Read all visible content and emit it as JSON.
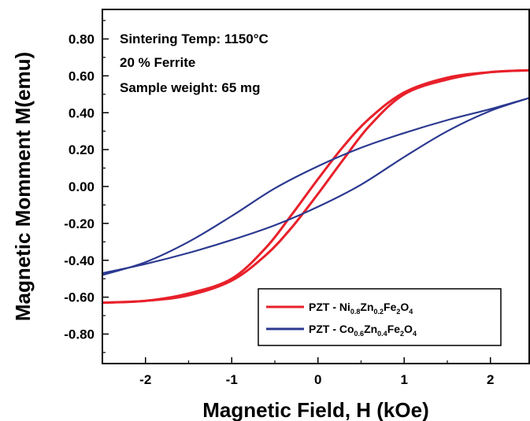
{
  "chart_data": {
    "type": "line",
    "title": "",
    "xlabel": "Magnetic Field, H (kOe)",
    "ylabel": "Magnetic Momment M(emu)",
    "xlim": [
      -2.5,
      2.45
    ],
    "ylim": [
      -0.96,
      0.96
    ],
    "x_ticks": [
      -2,
      -1,
      0,
      1,
      2
    ],
    "y_ticks": [
      0.8,
      0.6,
      0.4,
      0.2,
      0.0,
      -0.2,
      -0.4,
      -0.6,
      -0.8
    ],
    "x_tick_labels": [
      "-2",
      "-1",
      "0",
      "1",
      "2"
    ],
    "y_tick_labels": [
      "0.80",
      "0.60",
      "0.40",
      "0.20",
      "0.00",
      "-0.20",
      "-0.40",
      "-0.60",
      "-0.80"
    ],
    "grid": false,
    "legend_position": "bottom-right",
    "annotations": [
      "Sintering Temp: 1150°C",
      "20 % Ferrite",
      "Sample weight: 65 mg"
    ],
    "series": [
      {
        "name": "PZT - Ni0.8Zn0.2Fe2O4",
        "legend_parts": [
          [
            "PZT - Ni",
            false
          ],
          [
            "0.8",
            true
          ],
          [
            "Zn",
            false
          ],
          [
            "0.2",
            true
          ],
          [
            "Fe",
            false
          ],
          [
            "2",
            true
          ],
          [
            "O",
            false
          ],
          [
            "4",
            true
          ]
        ],
        "color": "#e8202a",
        "branches": [
          {
            "x": [
              -2.5,
              -2.0,
              -1.5,
              -1.0,
              -0.6,
              -0.3,
              0.0,
              0.3,
              0.6,
              1.0,
              1.5,
              2.0,
              2.45
            ],
            "y": [
              -0.63,
              -0.62,
              -0.59,
              -0.51,
              -0.37,
              -0.22,
              -0.04,
              0.15,
              0.33,
              0.5,
              0.58,
              0.62,
              0.63
            ]
          },
          {
            "x": [
              -2.5,
              -2.0,
              -1.5,
              -1.0,
              -0.6,
              -0.3,
              0.0,
              0.3,
              0.6,
              1.0,
              1.5,
              2.0,
              2.45
            ],
            "y": [
              -0.63,
              -0.62,
              -0.58,
              -0.5,
              -0.33,
              -0.15,
              0.04,
              0.22,
              0.37,
              0.51,
              0.59,
              0.62,
              0.63
            ]
          }
        ]
      },
      {
        "name": "PZT - Co0.6Zn0.4Fe2O4",
        "legend_parts": [
          [
            "PZT - Co",
            false
          ],
          [
            "0.6",
            true
          ],
          [
            "Zn",
            false
          ],
          [
            "0.4",
            true
          ],
          [
            "Fe",
            false
          ],
          [
            "2",
            true
          ],
          [
            "O",
            false
          ],
          [
            "4",
            true
          ]
        ],
        "color": "#2b3990",
        "branches": [
          {
            "x": [
              -2.5,
              -2.0,
              -1.5,
              -1.0,
              -0.5,
              0.0,
              0.5,
              1.0,
              1.5,
              2.0,
              2.45
            ],
            "y": [
              -0.47,
              -0.42,
              -0.36,
              -0.29,
              -0.21,
              -0.11,
              0.01,
              0.16,
              0.3,
              0.41,
              0.48
            ]
          },
          {
            "x": [
              -2.5,
              -2.0,
              -1.5,
              -1.0,
              -0.5,
              0.0,
              0.5,
              1.0,
              1.5,
              2.0,
              2.45
            ],
            "y": [
              -0.48,
              -0.41,
              -0.3,
              -0.16,
              -0.01,
              0.11,
              0.21,
              0.29,
              0.36,
              0.42,
              0.48
            ]
          }
        ]
      }
    ]
  }
}
